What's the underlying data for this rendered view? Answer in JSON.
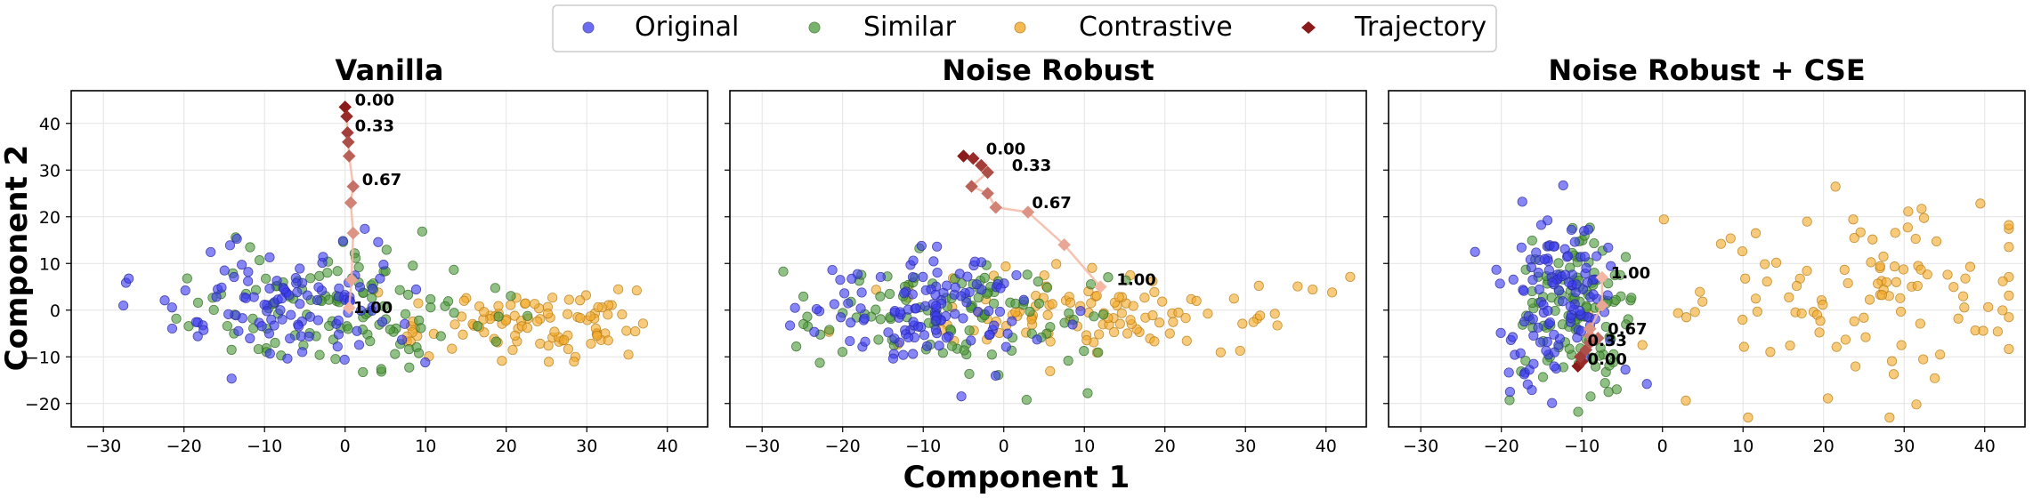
{
  "figure": {
    "xlabel": "Component 1",
    "ylabel": "Component 2",
    "legend": [
      {
        "label": "Original",
        "color": "#3b3bf0",
        "marker": "circle"
      },
      {
        "label": "Similar",
        "color": "#4c9a3a",
        "marker": "circle"
      },
      {
        "label": "Contrastive",
        "color": "#f4aa2b",
        "marker": "circle"
      },
      {
        "label": "Trajectory",
        "color": "#8b1a1a",
        "marker": "diamond"
      }
    ],
    "legend_position": "top-center"
  },
  "colors": {
    "original": "#3b3bf0",
    "similar": "#4c9a3a",
    "contrastive": "#f4aa2b",
    "trajectory_start": "#8b1a1a",
    "trajectory_end": "#f4b7a4"
  },
  "chart_data": [
    {
      "type": "scatter",
      "title": "Vanilla",
      "xlim": [
        -34,
        45
      ],
      "ylim": [
        -25,
        47
      ],
      "xticks": [
        -30,
        -20,
        -10,
        0,
        10,
        20,
        30,
        40
      ],
      "yticks": [
        -20,
        -10,
        0,
        10,
        20,
        30,
        40
      ],
      "grid": true,
      "clusters": {
        "original": {
          "cx": -7,
          "cy": 1,
          "sx": 8,
          "sy": 6,
          "n": 110
        },
        "similar": {
          "cx": 0,
          "cy": 0,
          "sx": 10,
          "sy": 6,
          "n": 120
        },
        "contrastive": {
          "cx": 22,
          "cy": -3,
          "sx": 8,
          "sy": 3.5,
          "n": 100
        }
      },
      "trajectory": [
        {
          "x": 0.0,
          "y": 43.5
        },
        {
          "x": 0.2,
          "y": 41.5
        },
        {
          "x": 0.3,
          "y": 38
        },
        {
          "x": 0.4,
          "y": 36
        },
        {
          "x": 0.5,
          "y": 33
        },
        {
          "x": 1.0,
          "y": 26.5
        },
        {
          "x": 0.7,
          "y": 23
        },
        {
          "x": 1.0,
          "y": 16.5
        },
        {
          "x": 0.8,
          "y": 6.5
        },
        {
          "x": 0.5,
          "y": 0.5
        }
      ],
      "trajectory_labels": [
        {
          "text": "0.00",
          "x": 1.2,
          "y": 45
        },
        {
          "text": "0.33",
          "x": 1.2,
          "y": 39.5
        },
        {
          "text": "0.67",
          "x": 2.1,
          "y": 28
        },
        {
          "text": "1.00",
          "x": 1.0,
          "y": 0.5
        }
      ]
    },
    {
      "type": "scatter",
      "title": "Noise Robust",
      "xlim": [
        -34,
        45
      ],
      "ylim": [
        -25,
        47
      ],
      "xticks": [
        -30,
        -20,
        -10,
        0,
        10,
        20,
        30,
        40
      ],
      "yticks": [
        -20,
        -10,
        0,
        10,
        20,
        30,
        40
      ],
      "grid": true,
      "clusters": {
        "original": {
          "cx": -8,
          "cy": 0,
          "sx": 8,
          "sy": 6,
          "n": 120
        },
        "similar": {
          "cx": -6,
          "cy": -1,
          "sx": 9,
          "sy": 6,
          "n": 110
        },
        "contrastive": {
          "cx": 12,
          "cy": -1,
          "sx": 11,
          "sy": 5,
          "n": 110
        }
      },
      "trajectory": [
        {
          "x": -5.0,
          "y": 33
        },
        {
          "x": -3.8,
          "y": 32.5
        },
        {
          "x": -2.8,
          "y": 31
        },
        {
          "x": -2.0,
          "y": 29.5
        },
        {
          "x": -4.0,
          "y": 26.5
        },
        {
          "x": -2.0,
          "y": 25
        },
        {
          "x": -1.0,
          "y": 22
        },
        {
          "x": 3.0,
          "y": 21
        },
        {
          "x": 7.5,
          "y": 14
        },
        {
          "x": 12.0,
          "y": 5
        }
      ],
      "trajectory_labels": [
        {
          "text": "0.00",
          "x": -2.2,
          "y": 34.5
        },
        {
          "text": "0.33",
          "x": 1.0,
          "y": 31
        },
        {
          "text": "0.67",
          "x": 3.5,
          "y": 23
        },
        {
          "text": "1.00",
          "x": 14.0,
          "y": 6.5
        }
      ]
    },
    {
      "type": "scatter",
      "title": "Noise Robust + CSE",
      "xlim": [
        -34,
        45
      ],
      "ylim": [
        -25,
        47
      ],
      "xticks": [
        -30,
        -20,
        -10,
        0,
        10,
        20,
        30,
        40
      ],
      "yticks": [
        -20,
        -10,
        0,
        10,
        20,
        30,
        40
      ],
      "grid": true,
      "clusters": {
        "original": {
          "cx": -13,
          "cy": 3,
          "sx": 3.5,
          "sy": 9,
          "n": 120
        },
        "similar": {
          "cx": -11,
          "cy": 0,
          "sx": 3.5,
          "sy": 10,
          "n": 120
        },
        "contrastive": {
          "cx": 25,
          "cy": 3,
          "sx": 12,
          "sy": 10,
          "n": 110
        }
      },
      "trajectory": [
        {
          "x": -10.5,
          "y": -12
        },
        {
          "x": -10.0,
          "y": -11
        },
        {
          "x": -10.2,
          "y": -10
        },
        {
          "x": -9.5,
          "y": -8.5
        },
        {
          "x": -9.0,
          "y": -7
        },
        {
          "x": -8.0,
          "y": -6
        },
        {
          "x": -9.0,
          "y": -5.5
        },
        {
          "x": -9.0,
          "y": -4
        },
        {
          "x": -7.5,
          "y": 1
        },
        {
          "x": -7.5,
          "y": 7
        }
      ],
      "trajectory_labels": [
        {
          "text": "0.00",
          "x": -9.3,
          "y": -10.5
        },
        {
          "text": "0.33",
          "x": -9.3,
          "y": -6.5
        },
        {
          "text": "0.67",
          "x": -6.8,
          "y": -4
        },
        {
          "text": "1.00",
          "x": -6.4,
          "y": 8
        }
      ]
    }
  ]
}
